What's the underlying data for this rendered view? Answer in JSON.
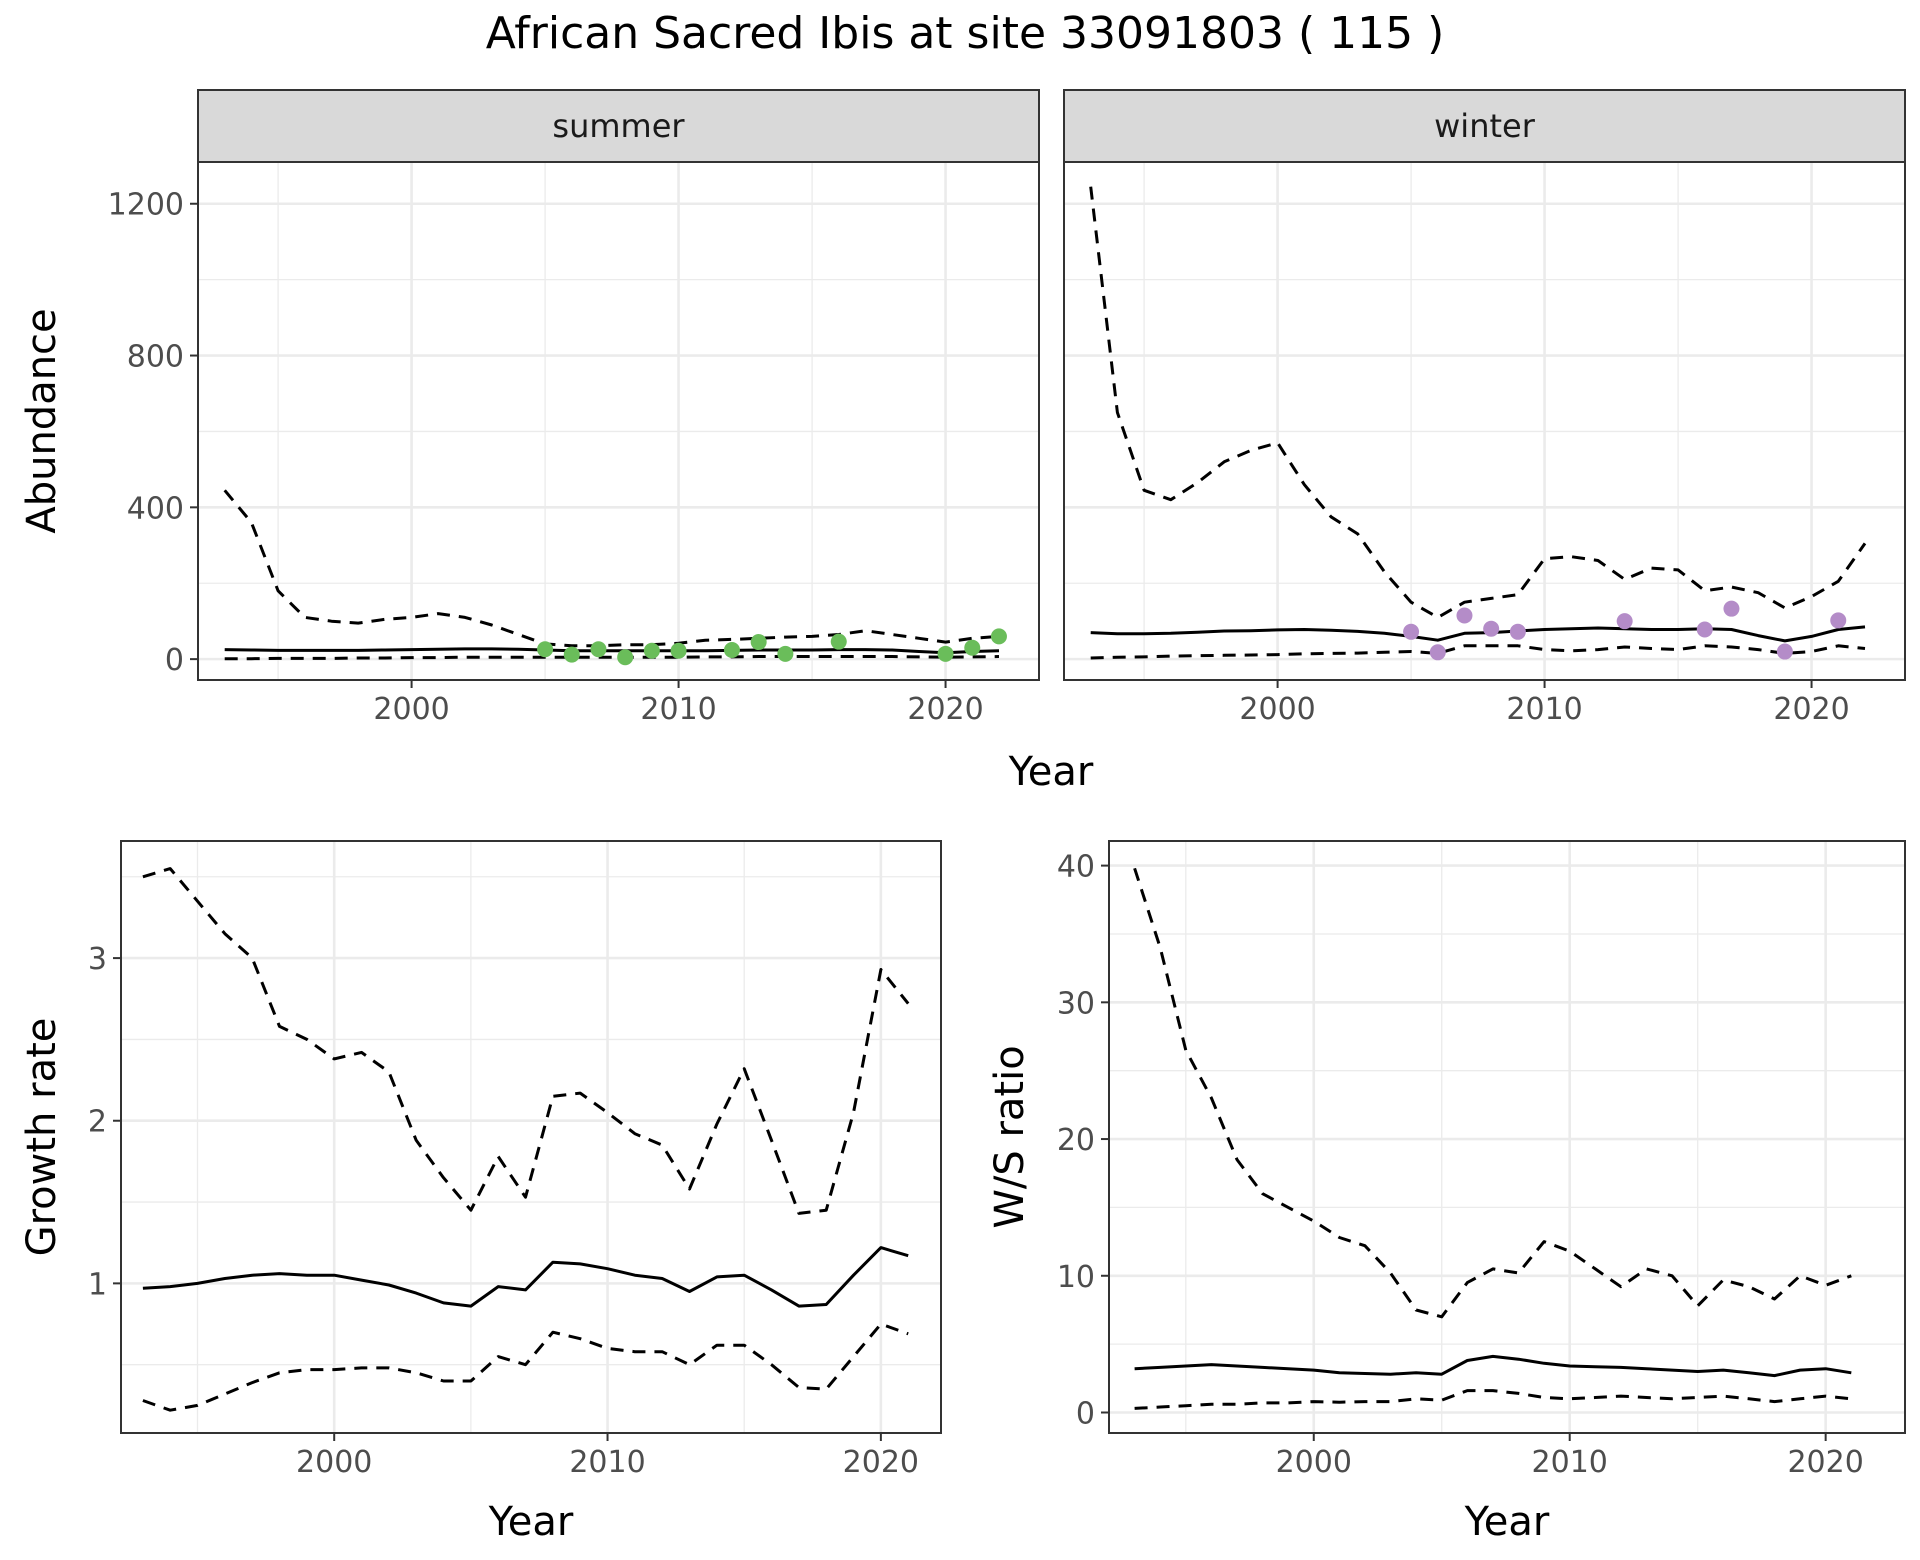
{
  "title": "African Sacred Ibis at site 33091803 ( 115 )",
  "colors": {
    "summer_points": "#6ABD5A",
    "winter_points": "#B48CC8",
    "lines": "#000000",
    "grid": "#EBEBEB",
    "strip_fill": "#D9D9D9"
  },
  "chart_data": [
    {
      "type": "line",
      "panel": "abundance",
      "ylabel": "Abundance",
      "xlabel": "Year",
      "facets": [
        "summer",
        "winter"
      ],
      "xlim": [
        1992,
        2023.5
      ],
      "ylim": [
        -55,
        1310
      ],
      "xticks": [
        2000,
        2010,
        2020
      ],
      "yticks": [
        0,
        400,
        800,
        1200
      ],
      "grid": true,
      "facet_data": {
        "summer": {
          "mean": {
            "x": [
              1993,
              1994,
              1995,
              1996,
              1997,
              1998,
              1999,
              2000,
              2001,
              2002,
              2003,
              2004,
              2005,
              2006,
              2007,
              2008,
              2009,
              2010,
              2011,
              2012,
              2013,
              2014,
              2015,
              2016,
              2017,
              2018,
              2019,
              2020,
              2021,
              2022
            ],
            "y": [
              25,
              24,
              23,
              23,
              23,
              23,
              24,
              25,
              26,
              27,
              27,
              26,
              24,
              22,
              22,
              22,
              22,
              22,
              22,
              23,
              24,
              24,
              24,
              25,
              25,
              24,
              20,
              17,
              20,
              22
            ]
          },
          "lower": {
            "x": [
              1993,
              1994,
              1995,
              1996,
              1997,
              1998,
              1999,
              2000,
              2001,
              2002,
              2003,
              2004,
              2005,
              2006,
              2007,
              2008,
              2009,
              2010,
              2011,
              2012,
              2013,
              2014,
              2015,
              2016,
              2017,
              2018,
              2019,
              2020,
              2021,
              2022
            ],
            "y": [
              1,
              1,
              2,
              2,
              2,
              3,
              3,
              4,
              4,
              5,
              5,
              5,
              5,
              5,
              5,
              5,
              5,
              5,
              6,
              6,
              7,
              7,
              7,
              7,
              7,
              7,
              6,
              5,
              6,
              7
            ]
          },
          "upper": {
            "x": [
              1993,
              1994,
              1995,
              1996,
              1997,
              1998,
              1999,
              2000,
              2001,
              2002,
              2003,
              2004,
              2005,
              2006,
              2007,
              2008,
              2009,
              2010,
              2011,
              2012,
              2013,
              2014,
              2015,
              2016,
              2017,
              2018,
              2019,
              2020,
              2021,
              2022
            ],
            "y": [
              445,
              360,
              180,
              110,
              100,
              95,
              105,
              110,
              120,
              110,
              90,
              65,
              40,
              35,
              35,
              38,
              38,
              42,
              50,
              52,
              55,
              58,
              60,
              65,
              75,
              65,
              55,
              45,
              55,
              60
            ]
          },
          "points": {
            "x": [
              2005,
              2006,
              2007,
              2008,
              2009,
              2010,
              2012,
              2013,
              2014,
              2016,
              2020,
              2021,
              2022
            ],
            "y": [
              26,
              12,
              26,
              5,
              22,
              22,
              24,
              45,
              14,
              46,
              14,
              30,
              60
            ]
          }
        },
        "winter": {
          "mean": {
            "x": [
              1993,
              1994,
              1995,
              1996,
              1997,
              1998,
              1999,
              2000,
              2001,
              2002,
              2003,
              2004,
              2005,
              2006,
              2007,
              2008,
              2009,
              2010,
              2011,
              2012,
              2013,
              2014,
              2015,
              2016,
              2017,
              2018,
              2019,
              2020,
              2021,
              2022
            ],
            "y": [
              70,
              67,
              67,
              68,
              71,
              74,
              75,
              77,
              78,
              76,
              73,
              68,
              60,
              50,
              68,
              70,
              74,
              78,
              80,
              82,
              80,
              78,
              78,
              80,
              78,
              62,
              48,
              60,
              78,
              85
            ]
          },
          "lower": {
            "x": [
              1993,
              1994,
              1995,
              1996,
              1997,
              1998,
              1999,
              2000,
              2001,
              2002,
              2003,
              2004,
              2005,
              2006,
              2007,
              2008,
              2009,
              2010,
              2011,
              2012,
              2013,
              2014,
              2015,
              2016,
              2017,
              2018,
              2019,
              2020,
              2021,
              2022
            ],
            "y": [
              3,
              5,
              6,
              8,
              9,
              10,
              11,
              12,
              14,
              15,
              16,
              18,
              20,
              15,
              35,
              35,
              35,
              25,
              22,
              25,
              32,
              28,
              25,
              35,
              32,
              25,
              15,
              20,
              35,
              28
            ]
          },
          "upper": {
            "x": [
              1993,
              1994,
              1995,
              1996,
              1997,
              1998,
              1999,
              2000,
              2001,
              2002,
              2003,
              2004,
              2005,
              2006,
              2007,
              2008,
              2009,
              2010,
              2011,
              2012,
              2013,
              2014,
              2015,
              2016,
              2017,
              2018,
              2019,
              2020,
              2021,
              2022
            ],
            "y": [
              1245,
              650,
              445,
              420,
              465,
              520,
              550,
              570,
              460,
              375,
              330,
              230,
              150,
              110,
              150,
              160,
              170,
              265,
              270,
              260,
              210,
              240,
              235,
              180,
              190,
              175,
              135,
              165,
              205,
              305
            ]
          },
          "points": {
            "x": [
              2005,
              2006,
              2007,
              2008,
              2009,
              2013,
              2016,
              2017,
              2019,
              2021
            ],
            "y": [
              72,
              18,
              115,
              80,
              72,
              100,
              78,
              133,
              20,
              102
            ]
          }
        }
      }
    },
    {
      "type": "line",
      "panel": "growth",
      "ylabel": "Growth rate",
      "xlabel": "Year",
      "xlim": [
        1992.2,
        2022.2
      ],
      "ylim": [
        0.08,
        3.72
      ],
      "xticks": [
        2000,
        2010,
        2020
      ],
      "yticks": [
        1,
        2,
        3
      ],
      "grid": true,
      "mean": {
        "x": [
          1993,
          1994,
          1995,
          1996,
          1997,
          1998,
          1999,
          2000,
          2001,
          2002,
          2003,
          2004,
          2005,
          2006,
          2007,
          2008,
          2009,
          2010,
          2011,
          2012,
          2013,
          2014,
          2015,
          2016,
          2017,
          2018,
          2019,
          2020,
          2021
        ],
        "y": [
          0.97,
          0.98,
          1.0,
          1.03,
          1.05,
          1.06,
          1.05,
          1.05,
          1.02,
          0.99,
          0.94,
          0.88,
          0.86,
          0.98,
          0.96,
          1.13,
          1.12,
          1.09,
          1.05,
          1.03,
          0.95,
          1.04,
          1.05,
          0.96,
          0.86,
          0.87,
          1.05,
          1.22,
          1.17
        ]
      },
      "lower": {
        "x": [
          1993,
          1994,
          1995,
          1996,
          1997,
          1998,
          1999,
          2000,
          2001,
          2002,
          2003,
          2004,
          2005,
          2006,
          2007,
          2008,
          2009,
          2010,
          2011,
          2012,
          2013,
          2014,
          2015,
          2016,
          2017,
          2018,
          2019,
          2020,
          2021
        ],
        "y": [
          0.28,
          0.22,
          0.25,
          0.32,
          0.39,
          0.45,
          0.47,
          0.47,
          0.48,
          0.48,
          0.45,
          0.4,
          0.4,
          0.55,
          0.5,
          0.7,
          0.66,
          0.6,
          0.58,
          0.58,
          0.5,
          0.62,
          0.62,
          0.5,
          0.36,
          0.35,
          0.55,
          0.75,
          0.69
        ]
      },
      "upper": {
        "x": [
          1993,
          1994,
          1995,
          1996,
          1997,
          1998,
          1999,
          2000,
          2001,
          2002,
          2003,
          2004,
          2005,
          2006,
          2007,
          2008,
          2009,
          2010,
          2011,
          2012,
          2013,
          2014,
          2015,
          2016,
          2017,
          2018,
          2019,
          2020,
          2021
        ],
        "y": [
          3.5,
          3.55,
          3.35,
          3.15,
          3.0,
          2.58,
          2.5,
          2.38,
          2.42,
          2.3,
          1.88,
          1.65,
          1.45,
          1.78,
          1.53,
          2.15,
          2.17,
          2.05,
          1.92,
          1.85,
          1.58,
          1.98,
          2.32,
          1.88,
          1.43,
          1.45,
          2.05,
          2.93,
          2.72
        ]
      }
    },
    {
      "type": "line",
      "panel": "ratio",
      "ylabel": "W/S ratio",
      "xlabel": "Year",
      "xlim": [
        1992,
        2023.1
      ],
      "ylim": [
        -1.5,
        41.8
      ],
      "xticks": [
        2000,
        2010,
        2020
      ],
      "yticks": [
        0,
        10,
        20,
        30,
        40
      ],
      "grid": true,
      "mean": {
        "x": [
          1993,
          1994,
          1995,
          1996,
          1997,
          1998,
          1999,
          2000,
          2001,
          2002,
          2003,
          2004,
          2005,
          2006,
          2007,
          2008,
          2009,
          2010,
          2011,
          2012,
          2013,
          2014,
          2015,
          2016,
          2017,
          2018,
          2019,
          2020,
          2021
        ],
        "y": [
          3.2,
          3.3,
          3.4,
          3.5,
          3.4,
          3.3,
          3.2,
          3.1,
          2.9,
          2.85,
          2.8,
          2.9,
          2.8,
          3.8,
          4.1,
          3.9,
          3.6,
          3.4,
          3.35,
          3.3,
          3.2,
          3.1,
          3.0,
          3.1,
          2.9,
          2.7,
          3.1,
          3.2,
          2.9
        ]
      },
      "lower": {
        "x": [
          1993,
          1994,
          1995,
          1996,
          1997,
          1998,
          1999,
          2000,
          2001,
          2002,
          2003,
          2004,
          2005,
          2006,
          2007,
          2008,
          2009,
          2010,
          2011,
          2012,
          2013,
          2014,
          2015,
          2016,
          2017,
          2018,
          2019,
          2020,
          2021
        ],
        "y": [
          0.3,
          0.4,
          0.5,
          0.6,
          0.6,
          0.7,
          0.7,
          0.8,
          0.75,
          0.8,
          0.8,
          1.0,
          0.9,
          1.6,
          1.6,
          1.4,
          1.1,
          1.0,
          1.1,
          1.2,
          1.1,
          1.0,
          1.1,
          1.2,
          1.0,
          0.8,
          1.0,
          1.2,
          1.0
        ]
      },
      "upper": {
        "x": [
          1993,
          1994,
          1995,
          1996,
          1997,
          1998,
          1999,
          2000,
          2001,
          2002,
          2003,
          2004,
          2005,
          2006,
          2007,
          2008,
          2009,
          2010,
          2011,
          2012,
          2013,
          2014,
          2015,
          2016,
          2017,
          2018,
          2019,
          2020,
          2021
        ],
        "y": [
          39.8,
          34,
          26.5,
          23,
          18.5,
          16,
          15,
          14,
          12.8,
          12.2,
          10.2,
          7.5,
          7,
          9.5,
          10.5,
          10.2,
          12.5,
          11.8,
          10.5,
          9.2,
          10.5,
          10,
          7.8,
          9.7,
          9.2,
          8.3,
          10,
          9.3,
          10
        ]
      }
    }
  ]
}
